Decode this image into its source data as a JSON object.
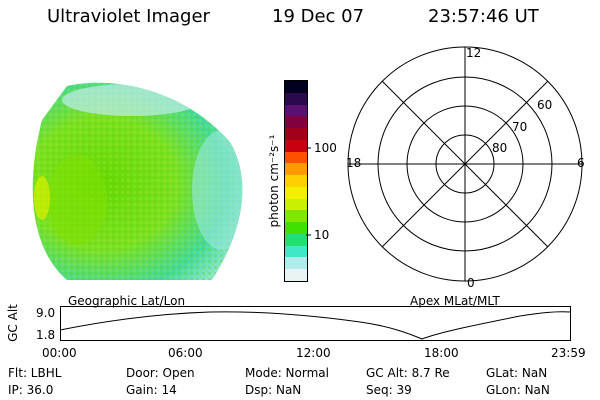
{
  "header": {
    "title": "Ultraviolet Imager",
    "date": "19 Dec 07",
    "time": "23:57:46 UT"
  },
  "colorbar": {
    "label": "photon cm⁻²s⁻¹",
    "ticks": [
      "100",
      "10"
    ],
    "colors": [
      "#000020",
      "#2a0a4a",
      "#5a1070",
      "#800040",
      "#a0001a",
      "#c80010",
      "#ff5000",
      "#ff9a00",
      "#ffd000",
      "#f2f000",
      "#c8f000",
      "#80e800",
      "#40e000",
      "#20e070",
      "#40e8c8",
      "#b0ecec",
      "#e8f4f4"
    ]
  },
  "left_panel": {
    "caption": "Geographic Lat/Lon"
  },
  "polar_plot": {
    "caption": "Apex MLat/MLT",
    "mlt_labels": [
      "12",
      "18",
      "6",
      "0"
    ],
    "lat_labels": [
      "60",
      "70",
      "80"
    ]
  },
  "timeline": {
    "ylabel": "GC Alt",
    "yticks": [
      "9.0",
      "1.8"
    ],
    "xticks": [
      "00:00",
      "06:00",
      "12:00",
      "18:00",
      "23:59"
    ]
  },
  "status": {
    "flt": "Flt: LBHL",
    "ip": "IP: 36.0",
    "door": "Door: Open",
    "gain": "Gain: 14",
    "mode": "Mode: Normal",
    "dsp": "Dsp:     NaN",
    "gcalt": "GC Alt: 8.7 Re",
    "seq": "Seq: 39",
    "glat": "GLat:      NaN",
    "glon": "GLon:    NaN"
  }
}
